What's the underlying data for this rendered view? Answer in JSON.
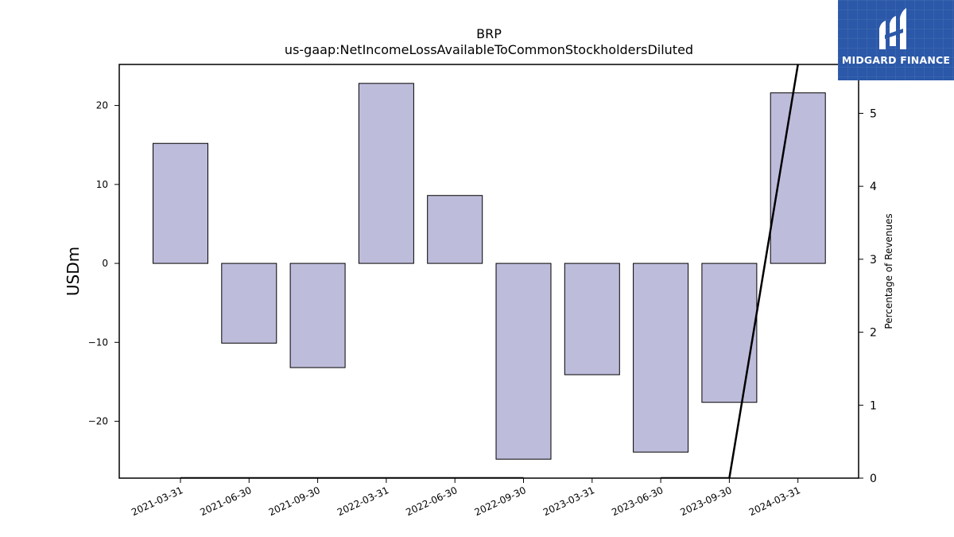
{
  "chart_data": {
    "type": "bar",
    "title": "BRP",
    "subtitle": "us-gaap:NetIncomeLossAvailableToCommonStockholdersDiluted",
    "ylabel": "USDm",
    "y2label": "Percentage of Revenues",
    "categories": [
      "2021-03-31",
      "2021-06-30",
      "2021-09-30",
      "2022-03-31",
      "2022-06-30",
      "2022-09-30",
      "2023-03-31",
      "2023-06-30",
      "2023-09-30",
      "2024-03-31"
    ],
    "values": [
      15.2,
      -10.1,
      -13.2,
      22.8,
      8.6,
      -24.8,
      -14.1,
      -23.9,
      -17.6,
      21.6
    ],
    "ylim": [
      -27.2,
      25.2
    ],
    "yticks": [
      -20,
      -10,
      0,
      10,
      20
    ],
    "yticks_labels": [
      "−20",
      "−10",
      "0",
      "10",
      "20"
    ],
    "y2lim": [
      0,
      5.67
    ],
    "y2ticks": [
      0,
      1,
      2,
      3,
      4,
      5
    ],
    "line_series": {
      "axis": "y2",
      "segments": [
        {
          "x": [
            0,
            5
          ],
          "y": [
            0,
            0
          ]
        },
        {
          "x": [
            7,
            8,
            9
          ],
          "y": [
            0,
            0,
            5.67
          ]
        }
      ]
    },
    "bar_color": "#bebcdb",
    "line_color": "#000000",
    "grid": false,
    "legend": "none"
  },
  "logo": {
    "text": "MIDGARD FINANCE",
    "background": "#2b58a8"
  }
}
